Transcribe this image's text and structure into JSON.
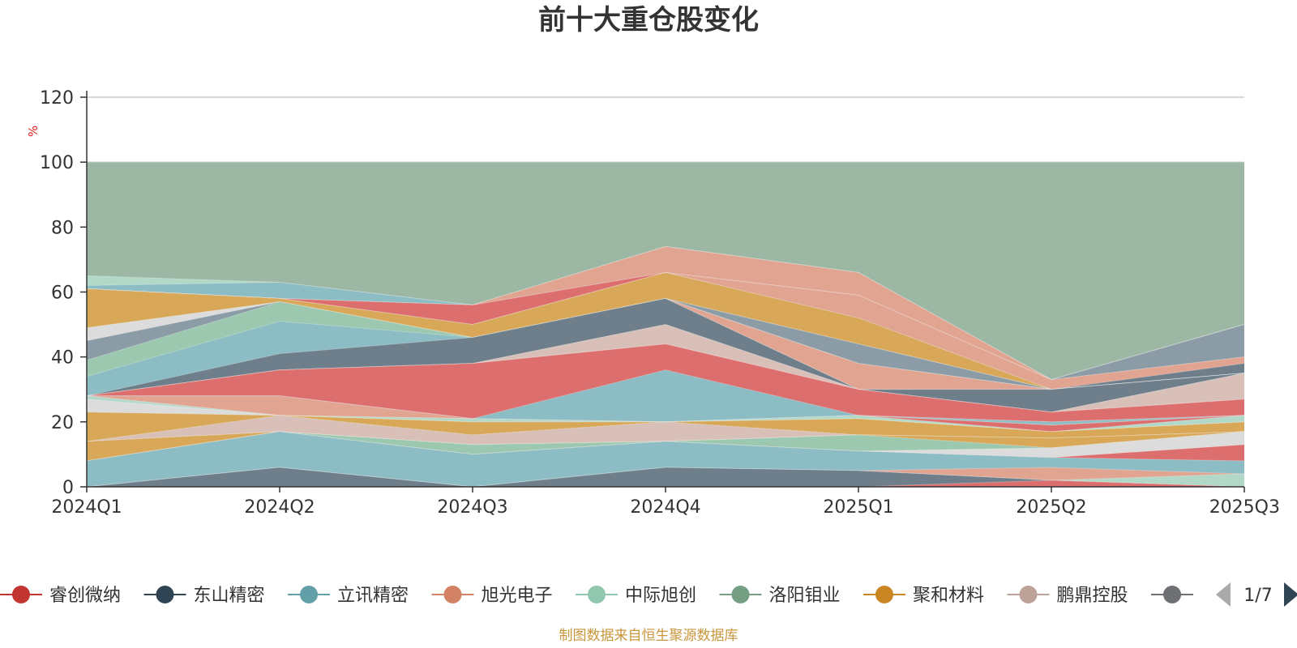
{
  "chart_data": {
    "type": "area",
    "title": "前十大重仓股变化",
    "ylabel": "%",
    "xlabel": "",
    "ylim": [
      0,
      120
    ],
    "yticks": [
      "0",
      "20",
      "40",
      "60",
      "80",
      "100",
      "120"
    ],
    "categories": [
      "2024Q1",
      "2024Q2",
      "2024Q3",
      "2024Q4",
      "2025Q1",
      "2025Q2",
      "2025Q3"
    ],
    "grid": true,
    "stacked_layers": [
      {
        "color": "#9cb8a4",
        "values": [
          100,
          100,
          100,
          100,
          100,
          100,
          100
        ]
      },
      {
        "color": "#b2d8c8",
        "values": [
          65,
          63,
          56,
          74,
          66,
          33,
          50
        ]
      },
      {
        "color": "#8cbcc4",
        "values": [
          62,
          63,
          56,
          74,
          66,
          33,
          50
        ]
      },
      {
        "color": "#e0a490",
        "values": [
          61,
          58,
          56,
          74,
          66,
          33,
          50
        ]
      },
      {
        "color": "#8b9ca6",
        "values": [
          61,
          58,
          56,
          66,
          59,
          33,
          50
        ]
      },
      {
        "color": "#dd6e6e",
        "values": [
          61,
          58,
          56,
          66,
          59,
          33,
          40
        ]
      },
      {
        "color": "#e0a490",
        "values": [
          61,
          58,
          50,
          66,
          59,
          33,
          40
        ]
      },
      {
        "color": "#6e7e8a",
        "values": [
          61,
          58,
          50,
          66,
          52,
          30,
          38
        ]
      },
      {
        "color": "#d8a858",
        "values": [
          61,
          58,
          50,
          66,
          52,
          30,
          35
        ]
      },
      {
        "color": "#dcdcdc",
        "values": [
          49,
          57,
          46,
          58,
          44,
          30,
          35
        ]
      },
      {
        "color": "#8b9ca6",
        "values": [
          45,
          57,
          46,
          58,
          44,
          30,
          35
        ]
      },
      {
        "color": "#9cc8b0",
        "values": [
          39,
          57,
          46,
          58,
          38,
          30,
          35
        ]
      },
      {
        "color": "#8cbcc4",
        "values": [
          34,
          51,
          46,
          58,
          38,
          30,
          35
        ]
      },
      {
        "color": "#e0a490",
        "values": [
          28,
          36,
          38,
          58,
          38,
          30,
          35
        ]
      },
      {
        "color": "#b2d8c8",
        "values": [
          28,
          36,
          30,
          58,
          30,
          30,
          35
        ]
      },
      {
        "color": "#6e7e8a",
        "values": [
          28,
          41,
          46,
          58,
          30,
          30,
          35
        ]
      },
      {
        "color": "#8b9ca6",
        "values": [
          28,
          36,
          38,
          50,
          30,
          23,
          35
        ]
      },
      {
        "color": "#d8c0b8",
        "values": [
          28,
          36,
          38,
          50,
          30,
          23,
          35
        ]
      },
      {
        "color": "#e0a490",
        "values": [
          28,
          36,
          38,
          44,
          30,
          23,
          27
        ]
      },
      {
        "color": "#dd6e6e",
        "values": [
          28,
          36,
          38,
          44,
          30,
          23,
          27
        ]
      },
      {
        "color": "#6e7e8a",
        "values": [
          28,
          28,
          21,
          28,
          22,
          20,
          22
        ]
      },
      {
        "color": "#8cbcc4",
        "values": [
          28,
          28,
          21,
          36,
          22,
          20,
          22
        ]
      },
      {
        "color": "#e0a490",
        "values": [
          28,
          28,
          21,
          20,
          22,
          19,
          22
        ]
      },
      {
        "color": "#dd6e6e",
        "values": [
          28,
          22,
          21,
          20,
          22,
          19,
          22
        ]
      },
      {
        "color": "#b2d8c8",
        "values": [
          28,
          22,
          21,
          20,
          22,
          17,
          22
        ]
      },
      {
        "color": "#dcdcdc",
        "values": [
          27,
          22,
          20,
          20,
          21,
          17,
          20
        ]
      },
      {
        "color": "#d8a858",
        "values": [
          23,
          22,
          20,
          20,
          21,
          17,
          20
        ]
      },
      {
        "color": "#d8c0b8",
        "values": [
          14,
          22,
          16,
          20,
          16,
          15,
          17
        ]
      },
      {
        "color": "#8b9ca6",
        "values": [
          14,
          17,
          13,
          14,
          16,
          15,
          17
        ]
      },
      {
        "color": "#d8a858",
        "values": [
          14,
          17,
          13,
          14,
          16,
          15,
          17
        ]
      },
      {
        "color": "#9cc8b0",
        "values": [
          8,
          17,
          13,
          14,
          16,
          12,
          17
        ]
      },
      {
        "color": "#dcdcdc",
        "values": [
          8,
          17,
          10,
          14,
          11,
          12,
          17
        ]
      },
      {
        "color": "#dd6e6e",
        "values": [
          8,
          17,
          10,
          14,
          11,
          9,
          13
        ]
      },
      {
        "color": "#8cbcc4",
        "values": [
          8,
          17,
          10,
          14,
          11,
          9,
          8
        ]
      },
      {
        "color": "#e0a490",
        "values": [
          0,
          6,
          0,
          6,
          5,
          6,
          4
        ]
      },
      {
        "color": "#b2d8c8",
        "values": [
          0,
          6,
          0,
          6,
          5,
          2,
          4
        ]
      },
      {
        "color": "#6e7e8a",
        "values": [
          0,
          6,
          0,
          6,
          5,
          2,
          0
        ]
      },
      {
        "color": "#dd6e6e",
        "values": [
          0,
          0,
          0,
          0,
          0,
          2,
          0
        ]
      }
    ],
    "legend": {
      "placement": "bottom",
      "page": "1/7",
      "items": [
        {
          "name": "睿创微纳",
          "color": "#c23531"
        },
        {
          "name": "东山精密",
          "color": "#2f4554"
        },
        {
          "name": "立讯精密",
          "color": "#61a0a8"
        },
        {
          "name": "旭光电子",
          "color": "#d48265"
        },
        {
          "name": "中际旭创",
          "color": "#91c7ae"
        },
        {
          "name": "洛阳钼业",
          "color": "#749f83"
        },
        {
          "name": "聚和材料",
          "color": "#ca8622"
        },
        {
          "name": "鹏鼎控股",
          "color": "#bda29a"
        },
        {
          "name": "",
          "color": "#6e7074"
        }
      ]
    }
  },
  "source_note": "制图数据来自恒生聚源数据库"
}
